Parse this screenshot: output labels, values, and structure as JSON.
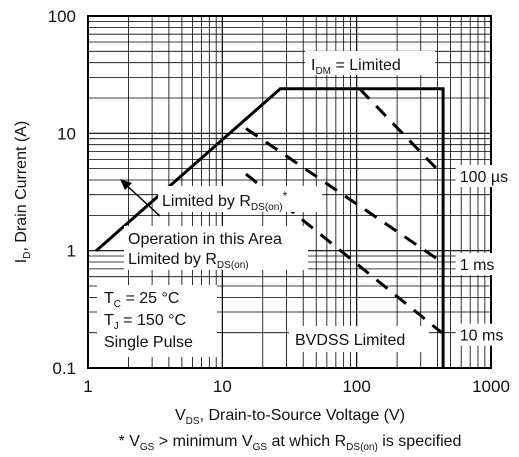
{
  "chart_data": {
    "type": "line",
    "title": "",
    "xscale": "log",
    "yscale": "log",
    "xlim": [
      1,
      1000
    ],
    "ylim": [
      0.1,
      100
    ],
    "x_ticks": [
      "1",
      "10",
      "100",
      "1000"
    ],
    "y_ticks": [
      "0.1",
      "1",
      "10",
      "100"
    ],
    "xlabel": {
      "pre": "V",
      "sub": "DS",
      "post": ", Drain-to-Source Voltage (V)"
    },
    "ylabel": {
      "pre": "I",
      "sub": "D",
      "post": ", Drain Current (A)"
    },
    "footnote": {
      "p1": "* V",
      "s1": "GS",
      "p2": " > minimum V",
      "s2": "GS",
      "p3": " at which R",
      "s3": "DS(on)",
      "p4": " is specified"
    },
    "annotations": {
      "idm": {
        "pre": "I",
        "sub": "DM",
        "post": " = Limited"
      },
      "rds": {
        "pre": "Limited by R",
        "sub": "DS(on)",
        "post": "*"
      },
      "op_line1": "Operation in this Area",
      "op_line2": {
        "pre": "Limited by R",
        "sub": "DS(on)"
      },
      "conditions": {
        "tc": "T",
        "tc_sub": "C",
        "tc_val": " = 25 °C",
        "tj": "T",
        "tj_sub": "J",
        "tj_val": " = 150 °C",
        "pulse": "Single Pulse"
      },
      "bvdss": "BVDSS Limited"
    },
    "series": [
      {
        "name": "100 µs",
        "style": "dashed",
        "x": [
          105,
          430
        ],
        "y": [
          24,
          4.5
        ]
      },
      {
        "name": "1 ms",
        "style": "dashed",
        "x": [
          15,
          430
        ],
        "y": [
          11,
          0.8
        ]
      },
      {
        "name": "10 ms",
        "style": "dashed",
        "x": [
          15,
          430
        ],
        "y": [
          4.5,
          0.2
        ]
      }
    ],
    "boundary": {
      "style": "solid",
      "x": [
        1.15,
        27,
        440,
        440
      ],
      "y": [
        1,
        24,
        24,
        0.1
      ]
    }
  }
}
